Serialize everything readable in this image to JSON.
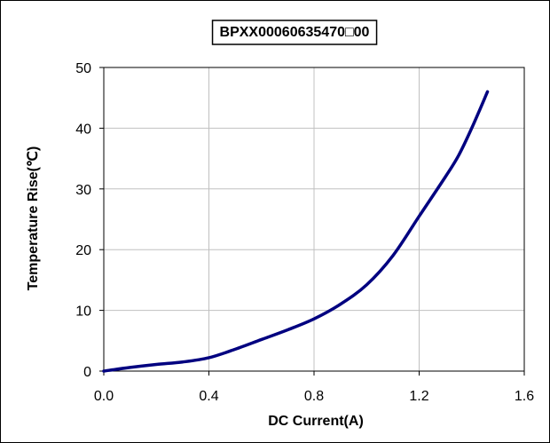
{
  "chart_data": {
    "type": "line",
    "title": "BPXX00060635470□00",
    "title_box": "boxed",
    "xlabel": "DC Current(A)",
    "ylabel": "Temperature Rise(℃)",
    "xlim": [
      0,
      1.6
    ],
    "ylim": [
      0,
      50
    ],
    "x_ticks": [
      "0.0",
      "0.4",
      "0.8",
      "1.2",
      "1.6"
    ],
    "y_ticks": [
      "0",
      "10",
      "20",
      "30",
      "40",
      "50"
    ],
    "grid": true,
    "line_color": "#000080",
    "series": [
      {
        "x": [
          0.0,
          0.1,
          0.2,
          0.3,
          0.4,
          0.5,
          0.6,
          0.7,
          0.8,
          0.9,
          1.0,
          1.1,
          1.2,
          1.3,
          1.35,
          1.4,
          1.46
        ],
        "y": [
          0.0,
          0.6,
          1.1,
          1.5,
          2.2,
          3.6,
          5.2,
          6.8,
          8.6,
          11.0,
          14.2,
          19.0,
          25.5,
          32.0,
          35.5,
          40.0,
          46.0
        ]
      }
    ]
  }
}
